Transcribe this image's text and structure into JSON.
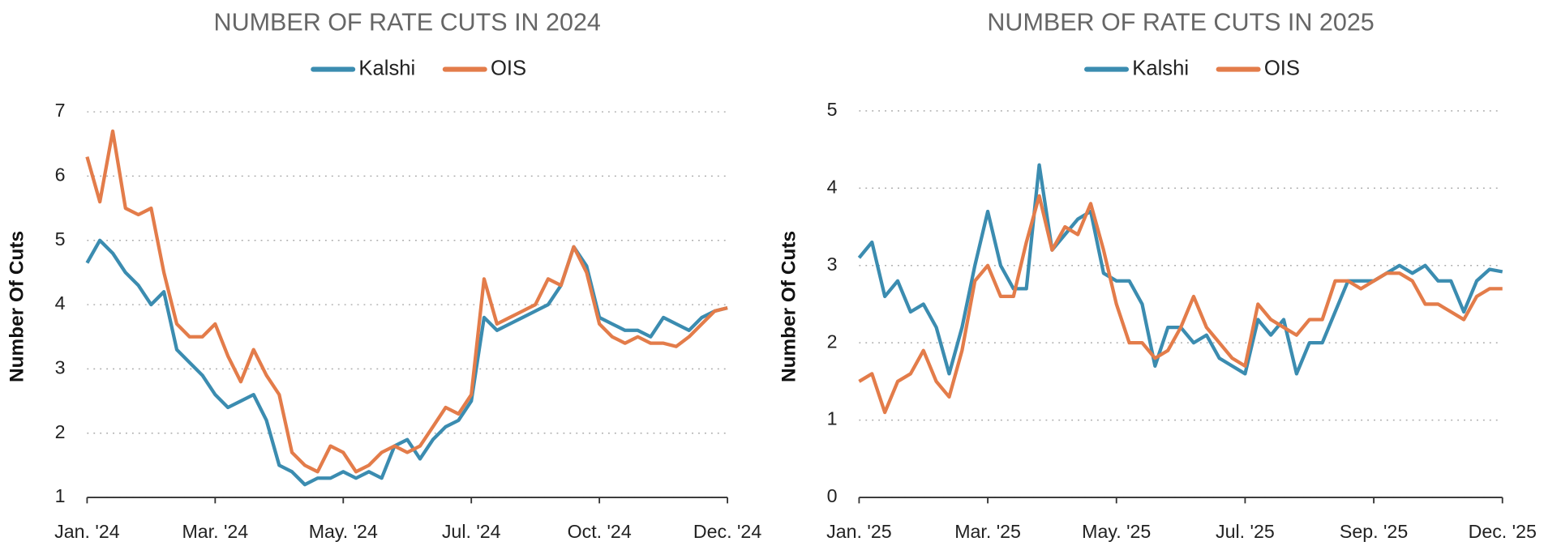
{
  "chart_data": [
    {
      "type": "line",
      "title": "NUMBER OF RATE CUTS IN 2024",
      "y_label": "Number Of Cuts",
      "categories": [
        "Jan. '24",
        null,
        null,
        null,
        null,
        null,
        null,
        null,
        null,
        null,
        "Mar. '24",
        null,
        null,
        null,
        null,
        null,
        null,
        null,
        null,
        null,
        "May. '24",
        null,
        null,
        null,
        null,
        null,
        null,
        null,
        null,
        null,
        "Jul. '24",
        null,
        null,
        null,
        null,
        null,
        null,
        null,
        null,
        null,
        "Oct. '24",
        null,
        null,
        null,
        null,
        null,
        null,
        null,
        null,
        null,
        "Dec. '24"
      ],
      "series": [
        {
          "name": "Kalshi",
          "color": "#3b8cb0",
          "values": [
            4.65,
            5.0,
            4.8,
            4.5,
            4.3,
            4.0,
            4.2,
            3.3,
            3.1,
            2.9,
            2.6,
            2.4,
            2.5,
            2.6,
            2.2,
            1.5,
            1.4,
            1.2,
            1.3,
            1.3,
            1.4,
            1.3,
            1.4,
            1.3,
            1.8,
            1.9,
            1.6,
            1.9,
            2.1,
            2.2,
            2.5,
            3.8,
            3.6,
            3.7,
            3.8,
            3.9,
            4.0,
            4.3,
            4.9,
            4.6,
            3.8,
            3.7,
            3.6,
            3.6,
            3.5,
            3.8,
            3.7,
            3.6,
            3.8,
            3.9,
            3.95
          ]
        },
        {
          "name": "OIS",
          "color": "#e37c4a",
          "values": [
            6.3,
            5.6,
            6.7,
            5.5,
            5.4,
            5.5,
            4.5,
            3.7,
            3.5,
            3.5,
            3.7,
            3.2,
            2.8,
            3.3,
            2.9,
            2.6,
            1.7,
            1.5,
            1.4,
            1.8,
            1.7,
            1.4,
            1.5,
            1.7,
            1.8,
            1.7,
            1.8,
            2.1,
            2.4,
            2.3,
            2.6,
            4.4,
            3.7,
            3.8,
            3.9,
            4.0,
            4.4,
            4.3,
            4.9,
            4.5,
            3.7,
            3.5,
            3.4,
            3.5,
            3.4,
            3.4,
            3.35,
            3.5,
            3.7,
            3.9,
            3.95
          ]
        }
      ],
      "ylim": [
        1,
        7
      ],
      "yticks": [
        1,
        2,
        3,
        4,
        5,
        6,
        7
      ],
      "grid": true
    },
    {
      "type": "line",
      "title": "NUMBER OF RATE CUTS IN 2025",
      "y_label": "Number Of Cuts",
      "categories": [
        "Jan. '25",
        null,
        null,
        null,
        null,
        null,
        null,
        null,
        null,
        null,
        "Mar. '25",
        null,
        null,
        null,
        null,
        null,
        null,
        null,
        null,
        null,
        "May. '25",
        null,
        null,
        null,
        null,
        null,
        null,
        null,
        null,
        null,
        "Jul. '25",
        null,
        null,
        null,
        null,
        null,
        null,
        null,
        null,
        null,
        "Sep. '25",
        null,
        null,
        null,
        null,
        null,
        null,
        null,
        null,
        null,
        "Dec. '25"
      ],
      "series": [
        {
          "name": "Kalshi",
          "color": "#3b8cb0",
          "values": [
            3.1,
            3.3,
            2.6,
            2.8,
            2.4,
            2.5,
            2.2,
            1.6,
            2.2,
            3.0,
            3.7,
            3.0,
            2.7,
            2.7,
            4.3,
            3.2,
            3.4,
            3.6,
            3.7,
            2.9,
            2.8,
            2.8,
            2.5,
            1.7,
            2.2,
            2.2,
            2.0,
            2.1,
            1.8,
            1.7,
            1.6,
            2.3,
            2.1,
            2.3,
            1.6,
            2.0,
            2.0,
            2.4,
            2.8,
            2.8,
            2.8,
            2.9,
            3.0,
            2.9,
            3.0,
            2.8,
            2.8,
            2.4,
            2.8,
            2.95,
            2.92
          ]
        },
        {
          "name": "OIS",
          "color": "#e37c4a",
          "values": [
            1.5,
            1.6,
            1.1,
            1.5,
            1.6,
            1.9,
            1.5,
            1.3,
            1.9,
            2.8,
            3.0,
            2.6,
            2.6,
            3.3,
            3.9,
            3.2,
            3.5,
            3.4,
            3.8,
            3.2,
            2.5,
            2.0,
            2.0,
            1.8,
            1.9,
            2.2,
            2.6,
            2.2,
            2.0,
            1.8,
            1.7,
            2.5,
            2.3,
            2.2,
            2.1,
            2.3,
            2.3,
            2.8,
            2.8,
            2.7,
            2.8,
            2.9,
            2.9,
            2.8,
            2.5,
            2.5,
            2.4,
            2.3,
            2.6,
            2.7,
            2.7
          ]
        }
      ],
      "ylim": [
        0,
        5
      ],
      "yticks": [
        0,
        1,
        2,
        3,
        4,
        5
      ],
      "grid": true
    }
  ]
}
